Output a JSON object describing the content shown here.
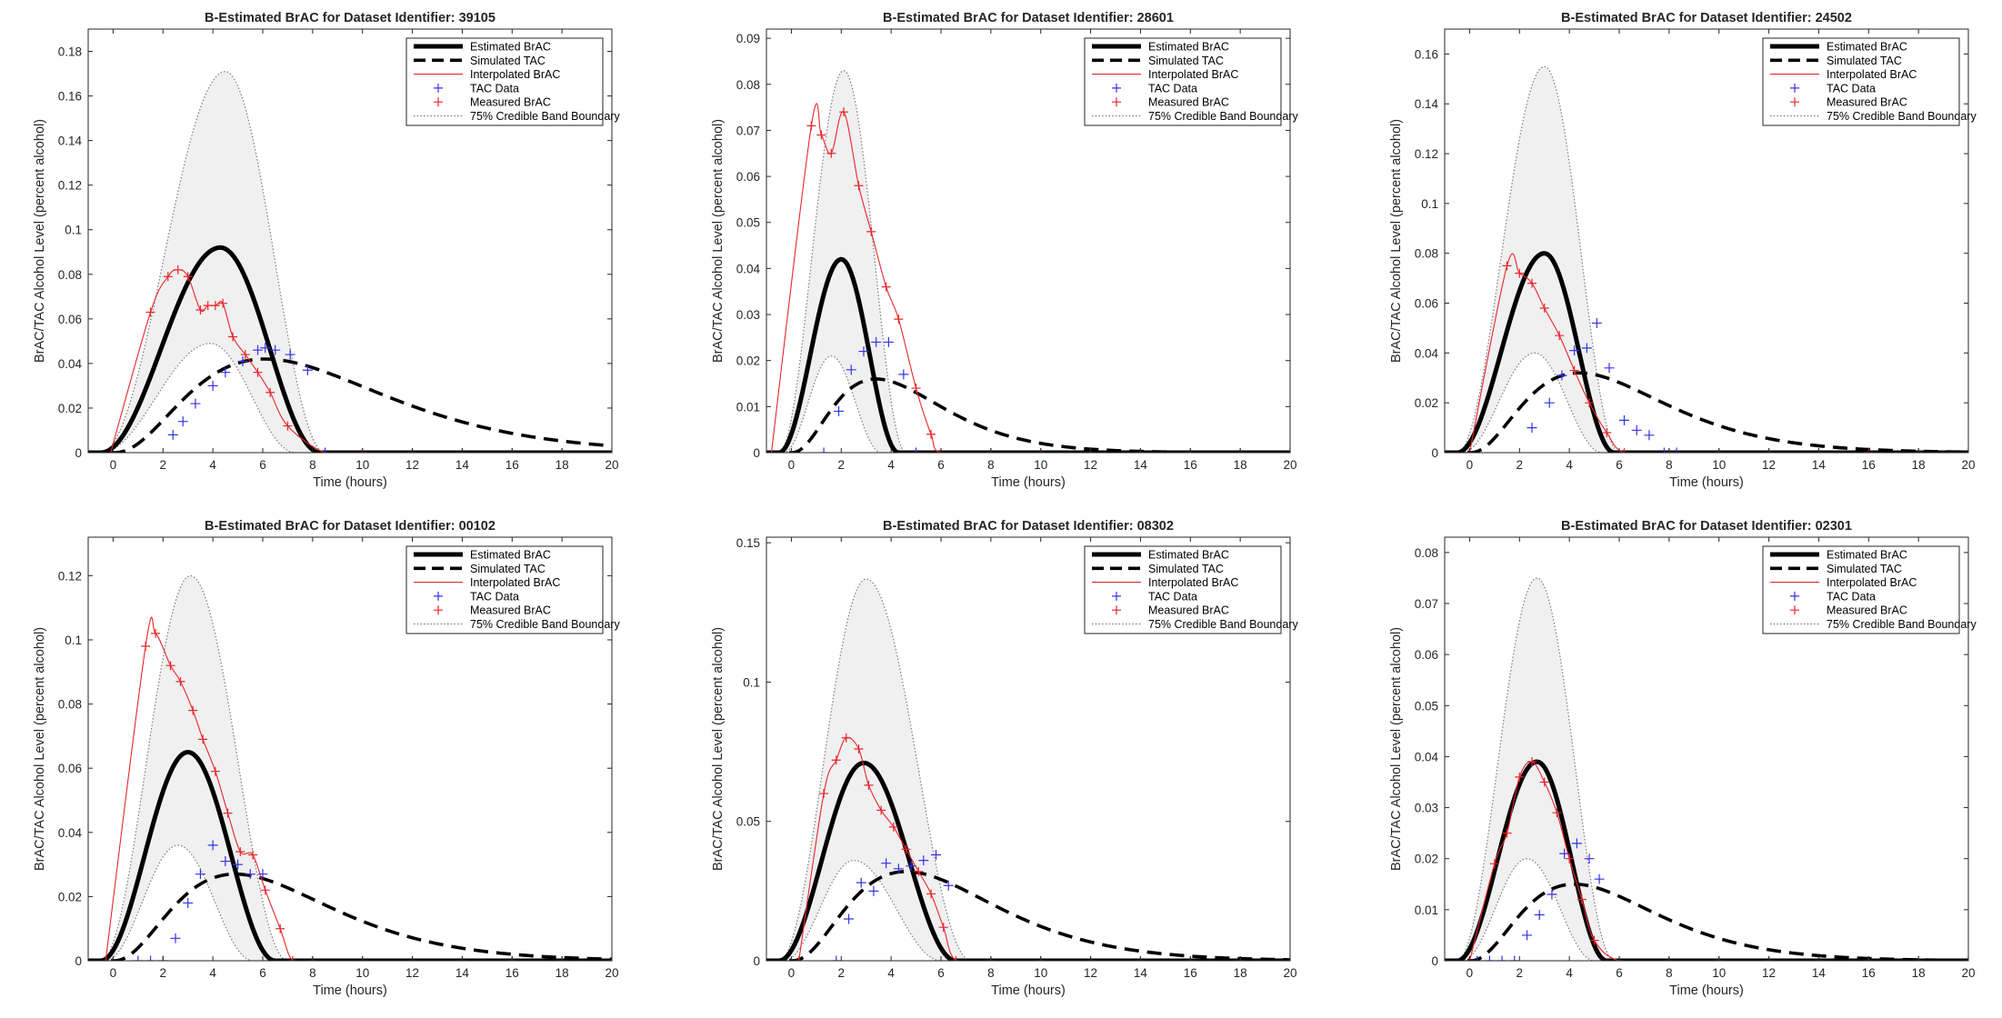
{
  "figure": {
    "colors": {
      "estimated": "#000000",
      "simulated": "#000000",
      "interpolated": "#e8252a",
      "tac_marker": "#3333e6",
      "measured_marker": "#e8252a",
      "band_fill": "#f0f0f0",
      "band_line": "#7a7a7a"
    }
  },
  "chart_data": [
    {
      "type": "line",
      "title": "B-Estimated BrAC for Dataset Identifier: 39105",
      "xlabel": "Time (hours)",
      "ylabel": "BrAC/TAC Alcohol Level (percent alcohol)",
      "xlim": [
        -1,
        20
      ],
      "ylim": [
        0,
        0.19
      ],
      "xticks": [
        0,
        2,
        4,
        6,
        8,
        10,
        12,
        14,
        16,
        18,
        20
      ],
      "yticks": [
        0,
        0.02,
        0.04,
        0.06,
        0.08,
        0.1,
        0.12,
        0.14,
        0.16,
        0.18
      ],
      "ytick_labels": [
        "0",
        "0.02",
        "0.04",
        "0.06",
        "0.08",
        "0.1",
        "0.12",
        "0.14",
        "0.16",
        "0.18"
      ],
      "legend": [
        "Estimated BrAC",
        "Simulated TAC",
        "Interpolated BrAC",
        "TAC Data",
        "Measured BrAC",
        "75% Credible Band Boundary"
      ],
      "legend_position": "top-right",
      "estimated": {
        "start": -0.5,
        "peak_time": 4.3,
        "peak": 0.092,
        "end": 8.3
      },
      "band_upper": {
        "start": -0.5,
        "peak_time": 4.5,
        "peak": 0.171,
        "end": 8.5
      },
      "band_lower": {
        "start": -0.5,
        "peak_time": 3.9,
        "peak": 0.049,
        "end": 7.3
      },
      "simulated_tac": {
        "start": 0,
        "peak_time": 6.1,
        "peak": 0.042,
        "end": 20
      },
      "measured_brac": {
        "x": [
          1.5,
          2.2,
          2.6,
          3.0,
          3.5,
          3.8,
          4.1,
          4.4,
          4.8,
          5.3,
          5.8,
          6.3,
          7.0,
          8.5,
          10,
          12,
          14,
          16,
          18,
          20
        ],
        "y": [
          0.063,
          0.079,
          0.082,
          0.079,
          0.064,
          0.066,
          0.066,
          0.067,
          0.052,
          0.044,
          0.036,
          0.027,
          0.012,
          0,
          0,
          0,
          0,
          0,
          0,
          0
        ]
      },
      "tac_data": {
        "x": [
          2.4,
          2.8,
          3.3,
          4.0,
          4.5,
          5.2,
          5.8,
          6.1,
          6.5,
          7.1,
          7.8,
          8.5
        ],
        "y": [
          0.008,
          0.014,
          0.022,
          0.03,
          0.036,
          0.041,
          0.046,
          0.047,
          0.046,
          0.044,
          0.037,
          0.0
        ]
      }
    },
    {
      "type": "line",
      "title": "B-Estimated BrAC for Dataset Identifier: 28601",
      "xlabel": "Time (hours)",
      "ylabel": "BrAC/TAC Alcohol Level (percent alcohol)",
      "xlim": [
        -1,
        20
      ],
      "ylim": [
        0,
        0.092
      ],
      "xticks": [
        0,
        2,
        4,
        6,
        8,
        10,
        12,
        14,
        16,
        18,
        20
      ],
      "yticks": [
        0,
        0.01,
        0.02,
        0.03,
        0.04,
        0.05,
        0.06,
        0.07,
        0.08,
        0.09
      ],
      "ytick_labels": [
        "0",
        "0.01",
        "0.02",
        "0.03",
        "0.04",
        "0.05",
        "0.06",
        "0.07",
        "0.08",
        "0.09"
      ],
      "legend": [
        "Estimated BrAC",
        "Simulated TAC",
        "Interpolated BrAC",
        "TAC Data",
        "Measured BrAC",
        "75% Credible Band Boundary"
      ],
      "legend_position": "top-right",
      "estimated": {
        "start": -0.5,
        "peak_time": 2.0,
        "peak": 0.042,
        "end": 4.3
      },
      "band_upper": {
        "start": -0.5,
        "peak_time": 2.1,
        "peak": 0.083,
        "end": 4.6
      },
      "band_lower": {
        "start": -0.3,
        "peak_time": 1.6,
        "peak": 0.021,
        "end": 3.6
      },
      "simulated_tac": {
        "start": 0,
        "peak_time": 3.4,
        "peak": 0.016,
        "end": 20
      },
      "measured_brac": {
        "x": [
          0.8,
          1.2,
          1.6,
          2.1,
          2.7,
          3.2,
          3.8,
          4.3,
          5.0,
          5.6,
          6,
          8,
          10,
          12,
          14,
          16,
          18,
          20
        ],
        "y": [
          0.071,
          0.069,
          0.065,
          0.074,
          0.058,
          0.048,
          0.036,
          0.029,
          0.014,
          0.004,
          0,
          0,
          0,
          0,
          0,
          0,
          0,
          0
        ]
      },
      "tac_data": {
        "x": [
          1.3,
          1.9,
          2.4,
          2.9,
          3.4,
          3.9,
          4.5,
          5.0
        ],
        "y": [
          0.0,
          0.009,
          0.018,
          0.022,
          0.024,
          0.024,
          0.017,
          0.0
        ]
      }
    },
    {
      "type": "line",
      "title": "B-Estimated BrAC for Dataset Identifier: 24502",
      "xlabel": "Time (hours)",
      "ylabel": "BrAC/TAC Alcohol Level (percent alcohol)",
      "xlim": [
        -1,
        20
      ],
      "ylim": [
        0,
        0.17
      ],
      "xticks": [
        0,
        2,
        4,
        6,
        8,
        10,
        12,
        14,
        16,
        18,
        20
      ],
      "yticks": [
        0,
        0.02,
        0.04,
        0.06,
        0.08,
        0.1,
        0.12,
        0.14,
        0.16
      ],
      "ytick_labels": [
        "0",
        "0.02",
        "0.04",
        "0.06",
        "0.08",
        "0.1",
        "0.12",
        "0.14",
        "0.16"
      ],
      "legend": [
        "Estimated BrAC",
        "Simulated TAC",
        "Interpolated BrAC",
        "TAC Data",
        "Measured BrAC",
        "75% Credible Band Boundary"
      ],
      "legend_position": "top-right",
      "estimated": {
        "start": -0.5,
        "peak_time": 3.0,
        "peak": 0.08,
        "end": 5.8
      },
      "band_upper": {
        "start": -0.5,
        "peak_time": 3.0,
        "peak": 0.155,
        "end": 6.0
      },
      "band_lower": {
        "start": -0.3,
        "peak_time": 2.6,
        "peak": 0.04,
        "end": 5.3
      },
      "simulated_tac": {
        "start": 0,
        "peak_time": 4.4,
        "peak": 0.032,
        "end": 20
      },
      "measured_brac": {
        "x": [
          0,
          1.5,
          2.0,
          2.5,
          3.0,
          3.6,
          4.2,
          4.8,
          5.5,
          6.2,
          8,
          10,
          12,
          14,
          16,
          18,
          20
        ],
        "y": [
          0,
          0.075,
          0.072,
          0.068,
          0.058,
          0.047,
          0.033,
          0.02,
          0.008,
          0,
          0,
          0,
          0,
          0,
          0,
          0,
          0
        ]
      },
      "tac_data": {
        "x": [
          2.5,
          3.2,
          3.7,
          4.2,
          4.7,
          5.1,
          5.6,
          6.2,
          6.7,
          7.2,
          7.8,
          8.3
        ],
        "y": [
          0.01,
          0.02,
          0.031,
          0.041,
          0.042,
          0.052,
          0.034,
          0.013,
          0.009,
          0.007,
          0.0,
          0.0
        ]
      }
    },
    {
      "type": "line",
      "title": "B-Estimated BrAC for Dataset Identifier: 00102",
      "xlabel": "Time (hours)",
      "ylabel": "BrAC/TAC Alcohol Level (percent alcohol)",
      "xlim": [
        -1,
        20
      ],
      "ylim": [
        0,
        0.132
      ],
      "xticks": [
        0,
        2,
        4,
        6,
        8,
        10,
        12,
        14,
        16,
        18,
        20
      ],
      "yticks": [
        0,
        0.02,
        0.04,
        0.06,
        0.08,
        0.1,
        0.12
      ],
      "ytick_labels": [
        "0",
        "0.02",
        "0.04",
        "0.06",
        "0.08",
        "0.1",
        "0.12"
      ],
      "legend": [
        "Estimated BrAC",
        "Simulated TAC",
        "Interpolated BrAC",
        "TAC Data",
        "Measured BrAC",
        "75% Credible Band Boundary"
      ],
      "legend_position": "top-right",
      "estimated": {
        "start": -0.5,
        "peak_time": 3.0,
        "peak": 0.065,
        "end": 6.5
      },
      "band_upper": {
        "start": -0.5,
        "peak_time": 3.1,
        "peak": 0.12,
        "end": 7.0
      },
      "band_lower": {
        "start": -0.3,
        "peak_time": 2.6,
        "peak": 0.036,
        "end": 5.6
      },
      "simulated_tac": {
        "start": 0,
        "peak_time": 4.9,
        "peak": 0.027,
        "end": 20
      },
      "measured_brac": {
        "x": [
          1.3,
          1.7,
          2.3,
          2.7,
          3.2,
          3.6,
          4.1,
          4.6,
          5.1,
          5.6,
          6.1,
          6.7,
          7.2,
          8,
          10,
          12,
          14,
          16,
          18,
          20
        ],
        "y": [
          0.098,
          0.102,
          0.092,
          0.087,
          0.078,
          0.069,
          0.059,
          0.046,
          0.034,
          0.033,
          0.022,
          0.01,
          0,
          0,
          0,
          0,
          0,
          0,
          0,
          0
        ]
      },
      "tac_data": {
        "x": [
          1.0,
          1.5,
          2.0,
          2.5,
          3.0,
          3.5,
          4.0,
          4.5,
          5.0,
          5.5,
          6.0
        ],
        "y": [
          0.0,
          0.0,
          0.0,
          0.007,
          0.018,
          0.027,
          0.036,
          0.031,
          0.03,
          0.027,
          0.027
        ]
      }
    },
    {
      "type": "line",
      "title": "B-Estimated BrAC for Dataset Identifier: 08302",
      "xlabel": "Time (hours)",
      "ylabel": "BrAC/TAC Alcohol Level (percent alcohol)",
      "xlim": [
        -1,
        20
      ],
      "ylim": [
        0,
        0.152
      ],
      "xticks": [
        0,
        2,
        4,
        6,
        8,
        10,
        12,
        14,
        16,
        18,
        20
      ],
      "yticks": [
        0,
        0.05,
        0.1,
        0.15
      ],
      "ytick_labels": [
        "0",
        "0.05",
        "0.1",
        "0.15"
      ],
      "legend": [
        "Estimated BrAC",
        "Simulated TAC",
        "Interpolated BrAC",
        "TAC Data",
        "Measured BrAC",
        "75% Credible Band Boundary"
      ],
      "legend_position": "top-right",
      "estimated": {
        "start": -0.5,
        "peak_time": 2.9,
        "peak": 0.071,
        "end": 6.6
      },
      "band_upper": {
        "start": -0.5,
        "peak_time": 3.0,
        "peak": 0.137,
        "end": 7.2
      },
      "band_lower": {
        "start": -0.3,
        "peak_time": 2.5,
        "peak": 0.036,
        "end": 6.0
      },
      "simulated_tac": {
        "start": 0,
        "peak_time": 4.6,
        "peak": 0.032,
        "end": 20
      },
      "measured_brac": {
        "x": [
          0.3,
          1.3,
          1.8,
          2.2,
          2.7,
          3.1,
          3.6,
          4.1,
          4.6,
          5.1,
          5.6,
          6.1,
          6.6,
          8,
          10,
          12,
          14,
          16,
          18,
          20
        ],
        "y": [
          0,
          0.06,
          0.072,
          0.08,
          0.076,
          0.063,
          0.054,
          0.048,
          0.04,
          0.032,
          0.024,
          0.012,
          0,
          0,
          0,
          0,
          0,
          0,
          0,
          0
        ]
      },
      "tac_data": {
        "x": [
          1.8,
          2.3,
          2.8,
          3.3,
          3.8,
          4.3,
          4.8,
          5.3,
          5.8,
          6.3
        ],
        "y": [
          0.0,
          0.015,
          0.028,
          0.025,
          0.035,
          0.033,
          0.034,
          0.036,
          0.038,
          0.027
        ]
      }
    },
    {
      "type": "line",
      "title": "B-Estimated BrAC for Dataset Identifier: 02301",
      "xlabel": "Time (hours)",
      "ylabel": "BrAC/TAC Alcohol Level (percent alcohol)",
      "xlim": [
        -1,
        20
      ],
      "ylim": [
        0,
        0.083
      ],
      "xticks": [
        0,
        2,
        4,
        6,
        8,
        10,
        12,
        14,
        16,
        18,
        20
      ],
      "yticks": [
        0,
        0.01,
        0.02,
        0.03,
        0.04,
        0.05,
        0.06,
        0.07,
        0.08
      ],
      "ytick_labels": [
        "0",
        "0.01",
        "0.02",
        "0.03",
        "0.04",
        "0.05",
        "0.06",
        "0.07",
        "0.08"
      ],
      "legend": [
        "Estimated BrAC",
        "Simulated TAC",
        "Interpolated BrAC",
        "TAC Data",
        "Measured BrAC",
        "75% Credible Band Boundary"
      ],
      "legend_position": "top-right",
      "estimated": {
        "start": -0.5,
        "peak_time": 2.7,
        "peak": 0.039,
        "end": 5.5
      },
      "band_upper": {
        "start": -0.5,
        "peak_time": 2.7,
        "peak": 0.075,
        "end": 5.8
      },
      "band_lower": {
        "start": -0.3,
        "peak_time": 2.3,
        "peak": 0.02,
        "end": 5.0
      },
      "simulated_tac": {
        "start": 0,
        "peak_time": 4.2,
        "peak": 0.015,
        "end": 20
      },
      "measured_brac": {
        "x": [
          0,
          1.0,
          1.5,
          2.0,
          2.5,
          3.0,
          3.5,
          4.0,
          4.5,
          5.0,
          6,
          8,
          10,
          12,
          14,
          16,
          18,
          20
        ],
        "y": [
          0,
          0.019,
          0.025,
          0.036,
          0.039,
          0.035,
          0.029,
          0.02,
          0.012,
          0.004,
          0,
          0,
          0,
          0,
          0,
          0,
          0,
          0
        ]
      },
      "tac_data": {
        "x": [
          0.3,
          0.8,
          1.3,
          1.8,
          2.3,
          2.8,
          3.3,
          3.8,
          4.3,
          4.8,
          5.2
        ],
        "y": [
          0.0,
          0.0,
          0.0,
          0.0,
          0.005,
          0.009,
          0.013,
          0.021,
          0.023,
          0.02,
          0.016
        ]
      }
    }
  ]
}
